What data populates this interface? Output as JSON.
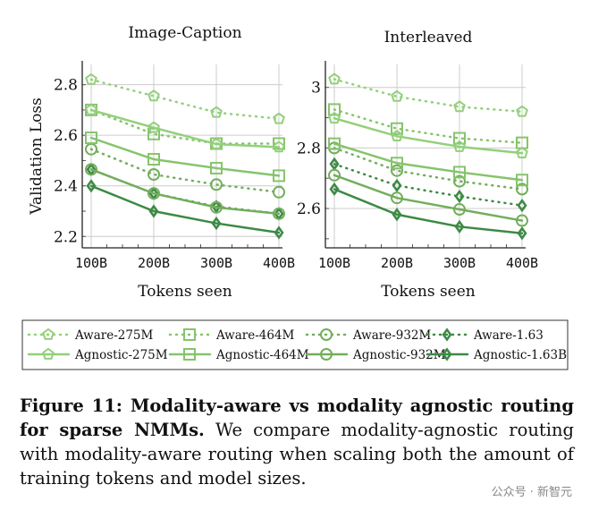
{
  "chart_data": [
    {
      "type": "line",
      "title": "Image-Caption",
      "xlabel": "Tokens seen",
      "ylabel": "Validation Loss",
      "categories": [
        "100B",
        "200B",
        "300B",
        "400B"
      ],
      "ylim": [
        2.155,
        2.88
      ],
      "yticks": [
        2.2,
        2.4,
        2.6,
        2.8
      ],
      "ytick_labels": [
        "2.2",
        "2.4",
        "2.6",
        "2.8"
      ],
      "grid": true,
      "series": [
        {
          "name": "Aware-275M",
          "values": [
            2.82,
            2.755,
            2.69,
            2.665
          ]
        },
        {
          "name": "Aware-464M",
          "values": [
            2.7,
            2.605,
            2.567,
            2.567
          ]
        },
        {
          "name": "Aware-932M",
          "values": [
            2.545,
            2.445,
            2.405,
            2.375
          ]
        },
        {
          "name": "Aware-1.63",
          "values": [
            2.465,
            2.37,
            2.318,
            2.29
          ]
        },
        {
          "name": "Agnostic-275M",
          "values": [
            2.7,
            2.63,
            2.565,
            2.553
          ]
        },
        {
          "name": "Agnostic-464M",
          "values": [
            2.59,
            2.505,
            2.47,
            2.44
          ]
        },
        {
          "name": "Agnostic-932M",
          "values": [
            2.465,
            2.37,
            2.315,
            2.29
          ]
        },
        {
          "name": "Agnostic-1.63B",
          "values": [
            2.4,
            2.3,
            2.252,
            2.215
          ]
        }
      ]
    },
    {
      "type": "line",
      "title": "Interleaved",
      "xlabel": "Tokens seen",
      "ylabel": "",
      "categories": [
        "100B",
        "200B",
        "300B",
        "400B"
      ],
      "ylim": [
        2.47,
        3.076
      ],
      "yticks": [
        2.6,
        2.8,
        3.0
      ],
      "ytick_labels": [
        "2.6",
        "2.8",
        "3"
      ],
      "grid": true,
      "series": [
        {
          "name": "Aware-275M",
          "values": [
            3.027,
            2.97,
            2.936,
            2.92
          ]
        },
        {
          "name": "Aware-464M",
          "values": [
            2.927,
            2.864,
            2.832,
            2.817
          ]
        },
        {
          "name": "Aware-932M",
          "values": [
            2.8,
            2.725,
            2.69,
            2.664
          ]
        },
        {
          "name": "Aware-1.63",
          "values": [
            2.747,
            2.676,
            2.64,
            2.61
          ]
        },
        {
          "name": "Agnostic-275M",
          "values": [
            2.898,
            2.839,
            2.804,
            2.783
          ]
        },
        {
          "name": "Agnostic-464M",
          "values": [
            2.814,
            2.75,
            2.72,
            2.694
          ]
        },
        {
          "name": "Agnostic-932M",
          "values": [
            2.71,
            2.635,
            2.597,
            2.56
          ]
        },
        {
          "name": "Agnostic-1.63B",
          "values": [
            2.664,
            2.58,
            2.54,
            2.518
          ]
        }
      ]
    }
  ],
  "legend": {
    "placement": "bottom",
    "entries": [
      {
        "name": "Aware-275M",
        "style": "dotted",
        "marker": "pentagon",
        "color": "#93d07a"
      },
      {
        "name": "Aware-464M",
        "style": "dotted",
        "marker": "square",
        "color": "#86c46c"
      },
      {
        "name": "Aware-932M",
        "style": "dotted",
        "marker": "circle",
        "color": "#72ae5c"
      },
      {
        "name": "Aware-1.63",
        "style": "dotted",
        "marker": "diamond",
        "color": "#3d8a45"
      },
      {
        "name": "Agnostic-275M",
        "style": "solid",
        "marker": "pentagon",
        "color": "#93d07a"
      },
      {
        "name": "Agnostic-464M",
        "style": "solid",
        "marker": "square",
        "color": "#86c46c"
      },
      {
        "name": "Agnostic-932M",
        "style": "solid",
        "marker": "circle",
        "color": "#72ae5c"
      },
      {
        "name": "Agnostic-1.63B",
        "style": "solid",
        "marker": "diamond",
        "color": "#3d8a45"
      }
    ]
  },
  "caption": {
    "label": "Figure 11: Modality-aware vs modality agnostic routing for sparse NMMs.",
    "text": " We compare modality-agnostic routing with modality-aware routing when scaling both the amount of training tokens and model sizes."
  },
  "watermark": "公众号 · 新智元"
}
